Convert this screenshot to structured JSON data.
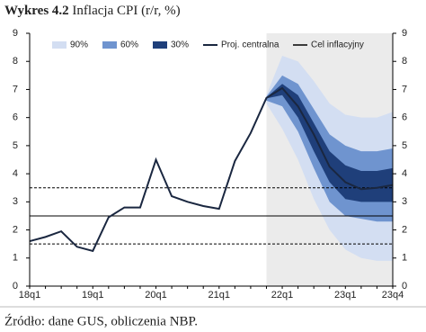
{
  "chart_data": {
    "type": "fan",
    "title_label": "Wykres 4.2",
    "title": "Inflacja CPI (r/r, %)",
    "source": "Źródło: dane GUS, obliczenia NBP.",
    "categories": [
      "18q1",
      null,
      null,
      null,
      "19q1",
      null,
      null,
      null,
      "20q1",
      null,
      null,
      null,
      "21q1",
      null,
      null,
      null,
      "22q1",
      null,
      null,
      null,
      "23q1",
      null,
      null,
      "23q4"
    ],
    "ylim": [
      0,
      9
    ],
    "yticks": [
      0,
      1,
      2,
      3,
      4,
      5,
      6,
      7,
      8,
      9
    ],
    "y2lim": [
      0,
      9
    ],
    "y2ticks": [
      0,
      1,
      2,
      3,
      4,
      5,
      6,
      7,
      8,
      9
    ],
    "bands": [
      {
        "name": "90%",
        "color": "#d3def2",
        "upper": [
          null,
          null,
          null,
          null,
          null,
          null,
          null,
          null,
          null,
          null,
          null,
          null,
          null,
          null,
          null,
          6.8,
          8.2,
          8.0,
          7.3,
          6.5,
          6.1,
          6.0,
          6.0,
          6.2
        ],
        "lower": [
          null,
          null,
          null,
          null,
          null,
          null,
          null,
          null,
          null,
          null,
          null,
          null,
          null,
          null,
          null,
          6.5,
          5.6,
          4.5,
          3.1,
          2.0,
          1.3,
          1.0,
          0.9,
          0.9
        ]
      },
      {
        "name": "60%",
        "color": "#6f94cf",
        "upper": [
          null,
          null,
          null,
          null,
          null,
          null,
          null,
          null,
          null,
          null,
          null,
          null,
          null,
          null,
          null,
          6.75,
          7.5,
          7.2,
          6.3,
          5.4,
          5.0,
          4.8,
          4.8,
          4.9
        ],
        "lower": [
          null,
          null,
          null,
          null,
          null,
          null,
          null,
          null,
          null,
          null,
          null,
          null,
          null,
          null,
          null,
          6.6,
          6.4,
          5.5,
          4.2,
          3.0,
          2.5,
          2.4,
          2.3,
          2.3
        ]
      },
      {
        "name": "30%",
        "color": "#1f3f7a",
        "upper": [
          null,
          null,
          null,
          null,
          null,
          null,
          null,
          null,
          null,
          null,
          null,
          null,
          null,
          null,
          null,
          6.72,
          7.2,
          6.8,
          5.8,
          4.8,
          4.3,
          4.1,
          4.1,
          4.2
        ],
        "lower": [
          null,
          null,
          null,
          null,
          null,
          null,
          null,
          null,
          null,
          null,
          null,
          null,
          null,
          null,
          null,
          6.68,
          6.8,
          6.0,
          4.8,
          3.7,
          3.1,
          3.0,
          3.0,
          3.0
        ]
      }
    ],
    "series": [
      {
        "name": "Proj. centralna",
        "color": "#1a2740",
        "values": [
          1.6,
          1.75,
          1.95,
          1.4,
          1.25,
          2.45,
          2.8,
          2.8,
          4.5,
          3.2,
          3.0,
          2.85,
          2.75,
          4.45,
          5.45,
          6.7,
          7.05,
          6.4,
          5.4,
          4.25,
          3.7,
          3.45,
          3.5,
          3.6
        ]
      }
    ],
    "target": {
      "name": "Cel inflacyjny",
      "color": "#000000",
      "value": 2.5,
      "tolerance": [
        1.5,
        3.5
      ]
    },
    "forecast_color": "#ebebeb"
  }
}
